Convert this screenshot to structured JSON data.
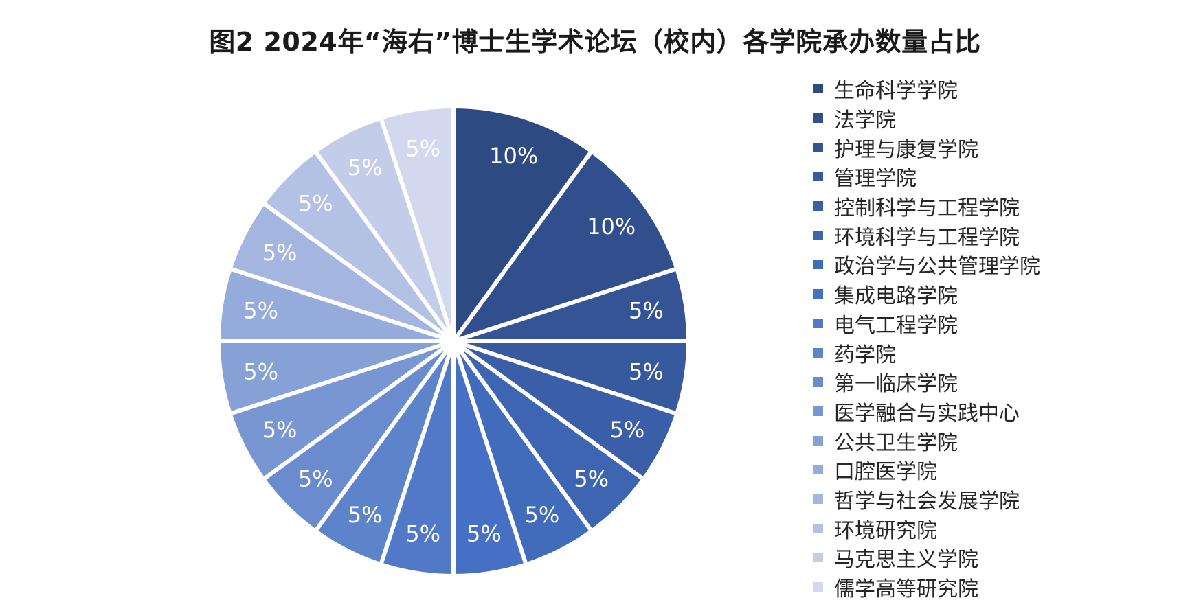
{
  "chart_data": {
    "type": "pie",
    "title": "图2 2024年“海右”博士生学术论坛（校内）各学院承办数量占比",
    "legend_position": "right",
    "slices": [
      {
        "label": "生命科学学院",
        "value": 10,
        "display": "10%",
        "color": "#2e4a82"
      },
      {
        "label": "法学院",
        "value": 10,
        "display": "10%",
        "color": "#314f8c"
      },
      {
        "label": "护理与康复学院",
        "value": 5,
        "display": "5%",
        "color": "#345495"
      },
      {
        "label": "管理学院",
        "value": 5,
        "display": "5%",
        "color": "#37599e"
      },
      {
        "label": "控制科学与工程学院",
        "value": 5,
        "display": "5%",
        "color": "#3a5fa8"
      },
      {
        "label": "环境科学与工程学院",
        "value": 5,
        "display": "5%",
        "color": "#3d65b2"
      },
      {
        "label": "政治学与公共管理学院",
        "value": 5,
        "display": "5%",
        "color": "#416bbb"
      },
      {
        "label": "集成电路学院",
        "value": 5,
        "display": "5%",
        "color": "#4570c4"
      },
      {
        "label": "电气工程学院",
        "value": 5,
        "display": "5%",
        "color": "#5179c8"
      },
      {
        "label": "药学院",
        "value": 5,
        "display": "5%",
        "color": "#5d83cb"
      },
      {
        "label": "第一临床学院",
        "value": 5,
        "display": "5%",
        "color": "#6a8ccf"
      },
      {
        "label": "医学融合与实践中心",
        "value": 5,
        "display": "5%",
        "color": "#7796d2"
      },
      {
        "label": "公共卫生学院",
        "value": 5,
        "display": "5%",
        "color": "#86a1d6"
      },
      {
        "label": "口腔医学院",
        "value": 5,
        "display": "5%",
        "color": "#95abdb"
      },
      {
        "label": "哲学与社会发展学院",
        "value": 5,
        "display": "5%",
        "color": "#a4b6df"
      },
      {
        "label": "环境研究院",
        "value": 5,
        "display": "5%",
        "color": "#b3c1e4"
      },
      {
        "label": "马克思主义学院",
        "value": 5,
        "display": "5%",
        "color": "#c3cde9"
      },
      {
        "label": "儒学高等研究院",
        "value": 5,
        "display": "5%",
        "color": "#d2d9ee"
      }
    ]
  }
}
